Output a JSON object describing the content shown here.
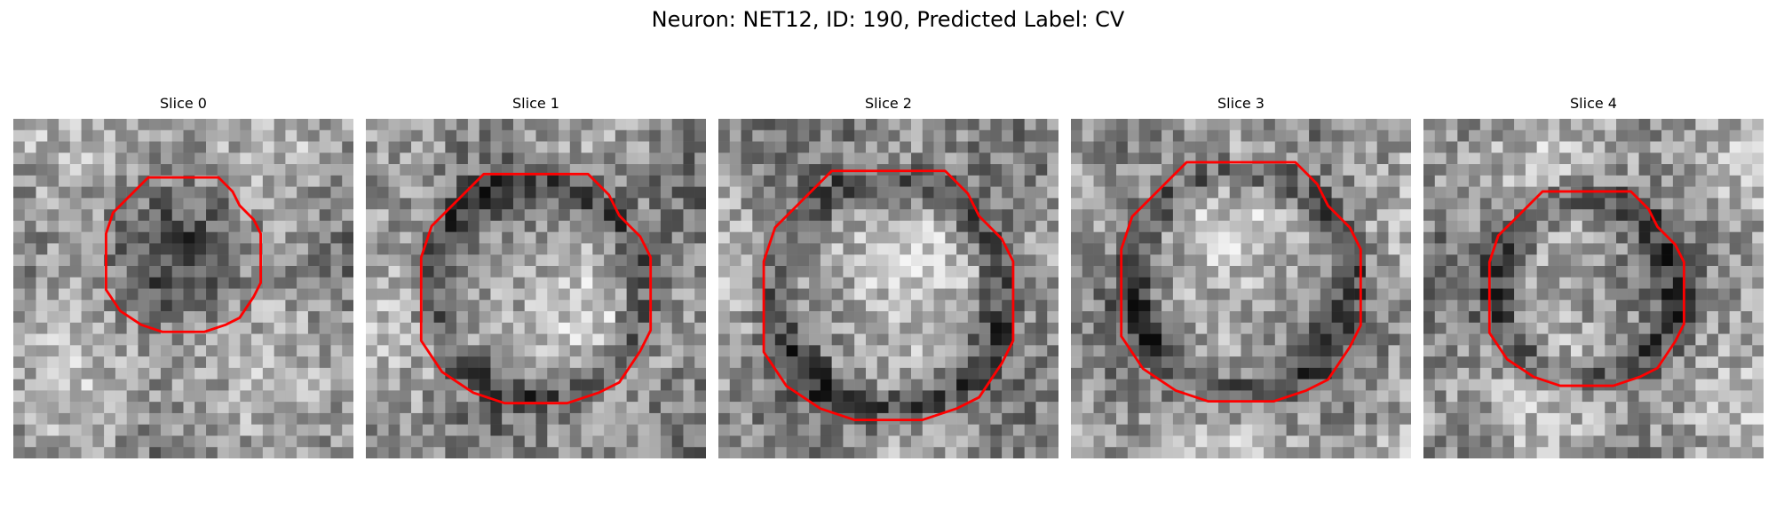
{
  "title": "Neuron: NET12, ID: 190, Predicted Label: CV",
  "contour_color": "#ff0000",
  "panels": [
    {
      "label": "Slice 0",
      "seed": 11,
      "contour_scale": 0.62,
      "center": [
        0.5,
        0.4
      ],
      "dark_ring": false
    },
    {
      "label": "Slice 1",
      "seed": 23,
      "contour_scale": 0.92,
      "center": [
        0.5,
        0.5
      ],
      "dark_ring": true
    },
    {
      "label": "Slice 2",
      "seed": 37,
      "contour_scale": 1.0,
      "center": [
        0.5,
        0.52
      ],
      "dark_ring": true
    },
    {
      "label": "Slice 3",
      "seed": 51,
      "contour_scale": 0.96,
      "center": [
        0.5,
        0.48
      ],
      "dark_ring": true
    },
    {
      "label": "Slice 4",
      "seed": 67,
      "contour_scale": 0.78,
      "center": [
        0.48,
        0.5
      ],
      "dark_ring": true
    }
  ]
}
